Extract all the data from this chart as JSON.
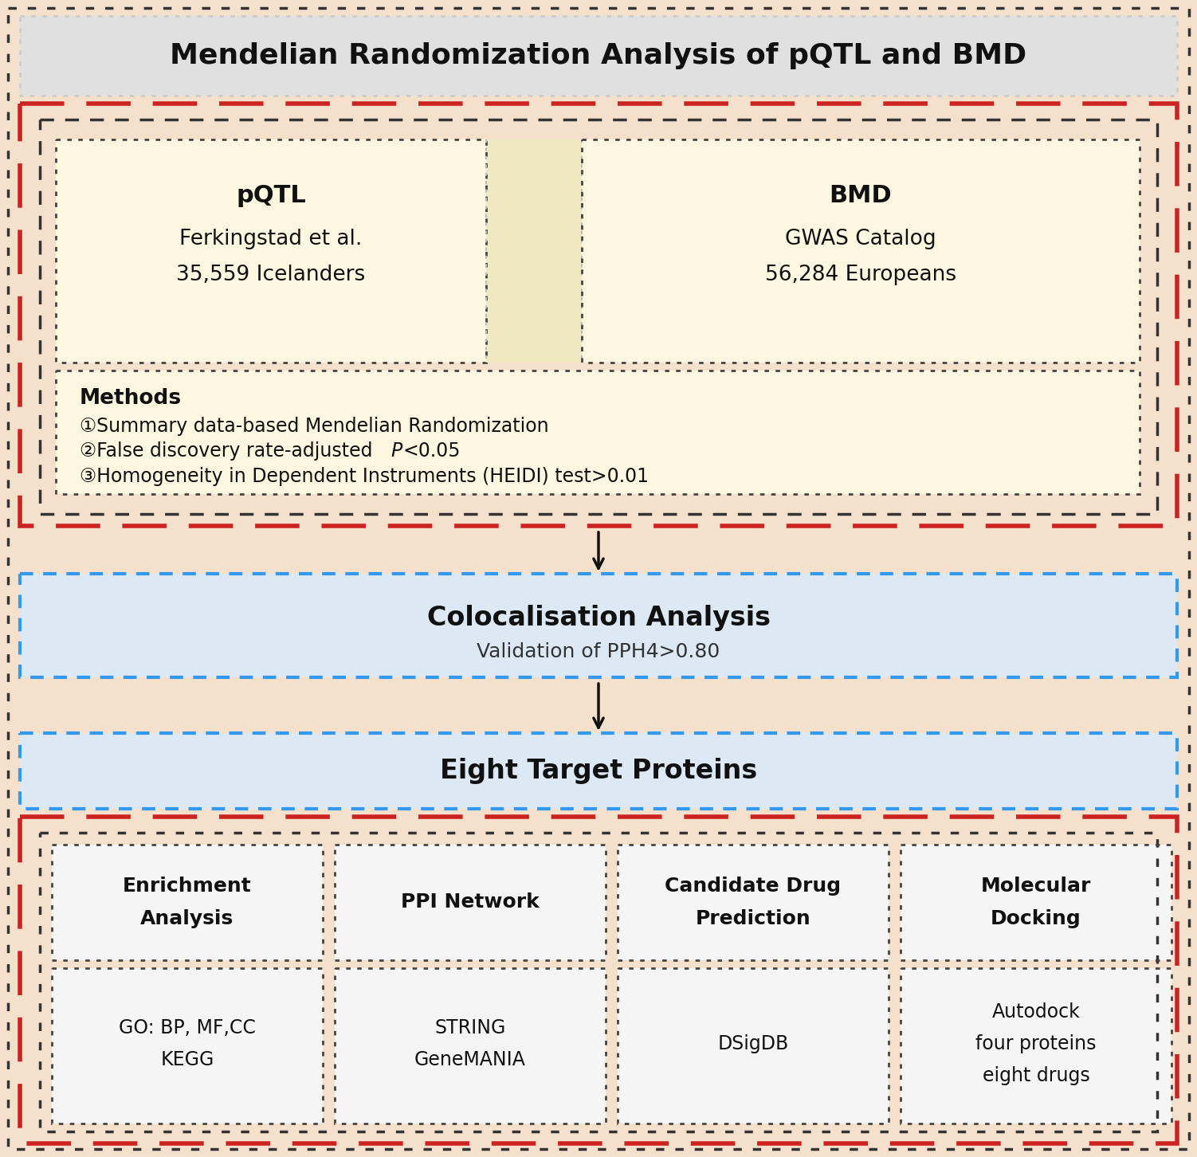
{
  "bg_color": "#f5e0cc",
  "title_text": "Mendelian Randomization Analysis of pQTL and BMD",
  "red_dashed_color": "#cc2222",
  "black_dashed_color": "#333333",
  "blue_dashed_color": "#3399ee",
  "pqtl_title": "pQTL",
  "pqtl_line1": "Ferkingstad et al.",
  "pqtl_line2": "35,559 Icelanders",
  "bmd_title": "BMD",
  "bmd_line1": "GWAS Catalog",
  "bmd_line2": "56,284 Europeans",
  "methods_title": "Methods",
  "methods_item1": "①Summary data-based Mendelian Randomization",
  "methods_item2a": "②False discovery rate-adjusted ",
  "methods_item2b": "P",
  "methods_item2c": "<0.05",
  "methods_item3": "③Homogeneity in Dependent Instruments (HEIDI) test>0.01",
  "coloc_title": "Colocalisation Analysis",
  "coloc_sub": "Validation of PPH4>0.80",
  "eight_title": "Eight Target Proteins",
  "box1_title_l1": "Enrichment",
  "box1_title_l2": "Analysis",
  "box1_sub_l1": "GO: BP, MF,CC",
  "box1_sub_l2": "KEGG",
  "box2_title_l1": "PPI Network",
  "box2_title_l2": "",
  "box2_sub_l1": "STRING",
  "box2_sub_l2": "GeneMANIA",
  "box3_title_l1": "Candidate Drug",
  "box3_title_l2": "Prediction",
  "box3_sub_l1": "DSigDB",
  "box3_sub_l2": "",
  "box4_title_l1": "Molecular",
  "box4_title_l2": "Docking",
  "box4_sub_l1": "Autodock",
  "box4_sub_l2": "four proteins",
  "box4_sub_l3": "eight drugs"
}
